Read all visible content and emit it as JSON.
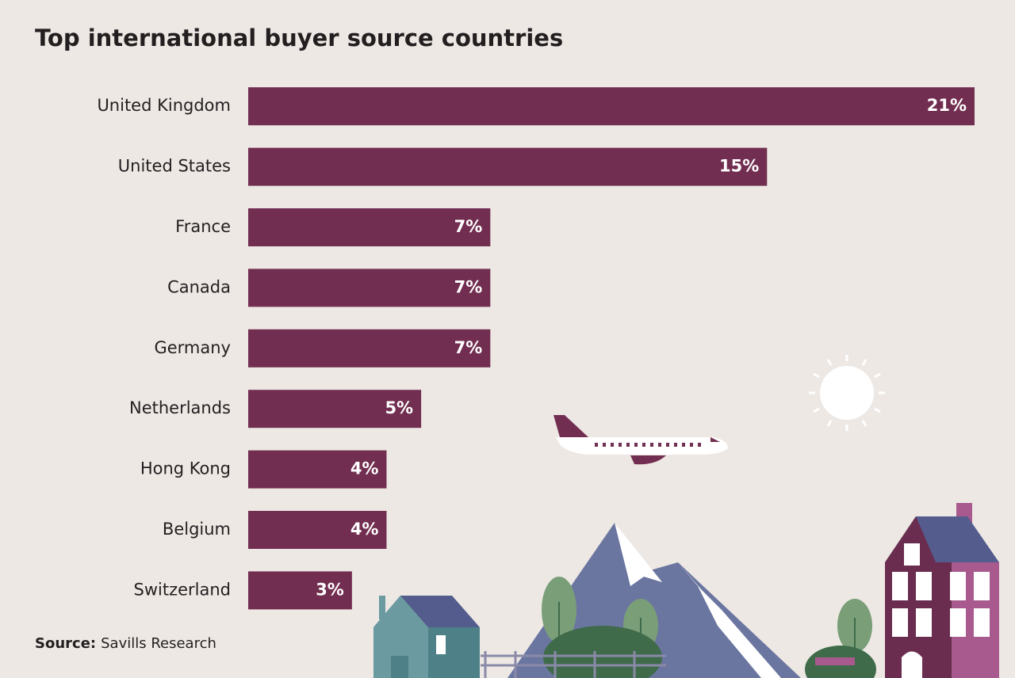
{
  "chart_data": {
    "type": "bar",
    "orientation": "horizontal",
    "title": "Top international buyer source countries",
    "categories": [
      "United Kingdom",
      "United States",
      "France",
      "Canada",
      "Germany",
      "Netherlands",
      "Hong Kong",
      "Belgium",
      "Switzerland"
    ],
    "values": [
      21,
      15,
      7,
      7,
      7,
      5,
      4,
      4,
      3
    ],
    "value_labels": [
      "21%",
      "15%",
      "7%",
      "7%",
      "7%",
      "5%",
      "4%",
      "4%",
      "3%"
    ],
    "color": "#722e50",
    "source_label": "Source:",
    "source": "Savills Research"
  }
}
